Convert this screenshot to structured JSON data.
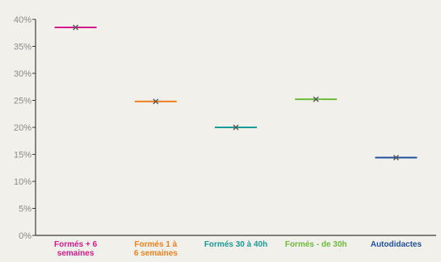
{
  "chart_data": {
    "type": "scatter",
    "title": "",
    "xlabel": "",
    "ylabel": "",
    "ylim": [
      0,
      40
    ],
    "yticks": [
      "0%",
      "5%",
      "10%",
      "15%",
      "20%",
      "25%",
      "30%",
      "35%",
      "40%"
    ],
    "grid": false,
    "legend": "none",
    "marker": "x-with-horizontal-bar",
    "categories": [
      {
        "label": "Formés + 6 semaines",
        "value": 38.5,
        "color": "#d6198a"
      },
      {
        "label": "Formés 1 à 6 semaines",
        "value": 24.8,
        "color": "#f0801e"
      },
      {
        "label": "Formés 30 à 40h",
        "value": 20.0,
        "color": "#1d9a95"
      },
      {
        "label": "Formés - de 30h",
        "value": 25.2,
        "color": "#6cbb3c"
      },
      {
        "label": "Autodidactes",
        "value": 14.4,
        "color": "#1f4f9e"
      }
    ],
    "colors": {
      "background": "#f1f0eb",
      "axis": "#3b3b3b",
      "tick_text": "#8a8a8a",
      "marker": "#555555"
    }
  }
}
